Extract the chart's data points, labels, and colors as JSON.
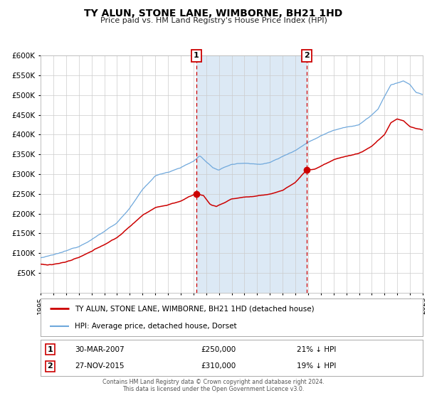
{
  "title": "TY ALUN, STONE LANE, WIMBORNE, BH21 1HD",
  "subtitle": "Price paid vs. HM Land Registry's House Price Index (HPI)",
  "legend_line1": "TY ALUN, STONE LANE, WIMBORNE, BH21 1HD (detached house)",
  "legend_line2": "HPI: Average price, detached house, Dorset",
  "marker1_date": "30-MAR-2007",
  "marker1_price": "£250,000",
  "marker1_pct": "21% ↓ HPI",
  "marker1_x": 2007.23,
  "marker1_y": 250000,
  "marker2_date": "27-NOV-2015",
  "marker2_price": "£310,000",
  "marker2_pct": "19% ↓ HPI",
  "marker2_x": 2015.9,
  "marker2_y": 310000,
  "footer1": "Contains HM Land Registry data © Crown copyright and database right 2024.",
  "footer2": "This data is licensed under the Open Government Licence v3.0.",
  "hpi_color": "#6fa8dc",
  "hpi_fill_color": "#c9ddf0",
  "price_color": "#cc0000",
  "plot_bg_color": "#ffffff",
  "shade_color": "#dce9f5",
  "grid_color": "#cccccc",
  "ylim": [
    0,
    600000
  ],
  "xlim": [
    1995,
    2025
  ],
  "yticks": [
    50000,
    100000,
    150000,
    200000,
    250000,
    300000,
    350000,
    400000,
    450000,
    500000,
    550000,
    600000
  ],
  "xticks": [
    1995,
    1996,
    1997,
    1998,
    1999,
    2000,
    2001,
    2002,
    2003,
    2004,
    2005,
    2006,
    2007,
    2008,
    2009,
    2010,
    2011,
    2012,
    2013,
    2014,
    2015,
    2016,
    2017,
    2018,
    2019,
    2020,
    2021,
    2022,
    2023,
    2024,
    2025
  ]
}
